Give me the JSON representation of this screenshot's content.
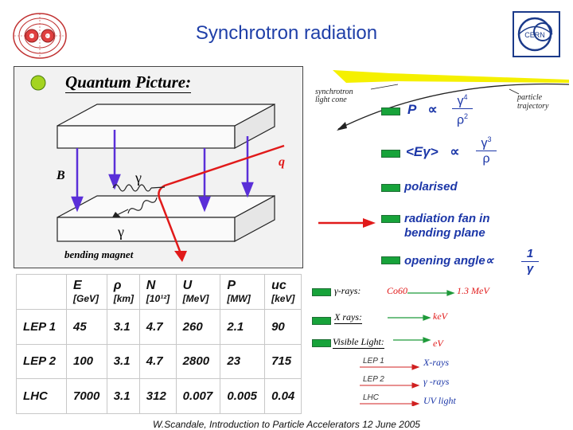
{
  "title": "Synchrotron radiation",
  "footer": "W.Scandale, Introduction to Particle Accelerators 12 June 2005",
  "quantum": {
    "title": "Quantum Picture:",
    "label_B": "B",
    "label_q": "q",
    "label_gamma_top": "γ",
    "label_gamma_bottom": "γ",
    "caption": "bending magnet"
  },
  "light_cone": {
    "label_line1": "synchrotron",
    "label_line2": "light cone",
    "traj_line1": "particle",
    "traj_line2": "trajectory"
  },
  "properties": [
    {
      "prefix": "P",
      "rel": "∝",
      "num": "γ",
      "num_exp": "4",
      "den": "ρ",
      "den_exp": "2"
    },
    {
      "prefix": "<Eγ>",
      "rel": "∝",
      "num": "γ",
      "num_exp": "3",
      "den": "ρ",
      "den_exp": ""
    },
    {
      "text": "polarised"
    },
    {
      "text": "radiation fan in bending plane"
    },
    {
      "text": "opening angle∝",
      "num": "1",
      "den": "γ"
    }
  ],
  "table": {
    "headers": [
      {
        "sym": "",
        "unit": ""
      },
      {
        "sym": "E",
        "unit": "[GeV]"
      },
      {
        "sym": "ρ",
        "unit": "[km]"
      },
      {
        "sym": "N",
        "unit": "[10¹²]"
      },
      {
        "sym": "U",
        "unit": "[MeV]"
      },
      {
        "sym": "P",
        "unit": "[MW]"
      },
      {
        "sym": "uc",
        "unit": "[keV]"
      }
    ],
    "rows": [
      [
        "LEP 1",
        "45",
        "3.1",
        "4.7",
        "260",
        "2.1",
        "90"
      ],
      [
        "LEP 2",
        "100",
        "3.1",
        "4.7",
        "2800",
        "23",
        "715"
      ],
      [
        "LHC",
        "7000",
        "3.1",
        "312",
        "0.007",
        "0.005",
        "0.04"
      ]
    ]
  },
  "spectrum": [
    {
      "label": "γ-rays:",
      "mid": "Co60",
      "value": "1.3 MeV"
    },
    {
      "label": "X rays:",
      "mid": "",
      "value": "keV"
    },
    {
      "label": "Visible Light:",
      "mid": "",
      "value": "eV"
    }
  ],
  "machines": [
    {
      "label": "LEP 1",
      "type": "X-rays"
    },
    {
      "label": "LEP 2",
      "type": "γ -rays"
    },
    {
      "label": "LHC",
      "type": "UV light"
    }
  ],
  "colors": {
    "title": "#1f3fa8",
    "bullet_green": "#17a33a",
    "bullet_box": "#1f6e35",
    "arrow_red": "#e11a1a",
    "arrow_blue": "#5a2fd8",
    "cone_yellow": "#f5f000"
  },
  "logos": {
    "left": "LHC logo",
    "right": "CERN"
  }
}
